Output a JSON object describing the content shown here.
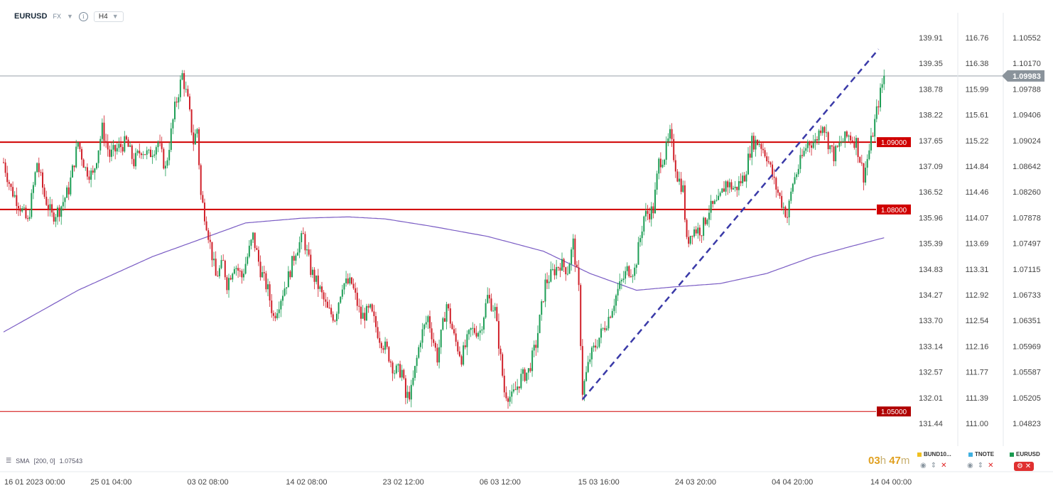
{
  "header": {
    "symbol": "EURUSD",
    "market": "FX",
    "timeframe": "H4"
  },
  "indicator": {
    "label": "SMA",
    "params": "[200, 0]",
    "value": "1.07543"
  },
  "timer": {
    "hours": "03",
    "h": "h",
    "minutes": "47",
    "m": "m"
  },
  "legend": [
    {
      "name": "BUND10...",
      "color": "#f0c020"
    },
    {
      "name": "TNOTE",
      "color": "#40b0e0"
    },
    {
      "name": "EURUSD",
      "color": "#1a9a50"
    }
  ],
  "colors": {
    "bull": "#1e9e56",
    "bear": "#d0202a",
    "sma": "#7a5cc4",
    "levels": "#d00000",
    "trend": "#3a3aa8",
    "price_tag": "#8a939b"
  },
  "chart_data": {
    "type": "candlestick",
    "symbol": "EURUSD",
    "timeframe": "H4",
    "ylim": [
      1.04823,
      1.10552
    ],
    "y_ticks_eurusd": [
      "1.10552",
      "1.10170",
      "1.09788",
      "1.09406",
      "1.09024",
      "1.08642",
      "1.08260",
      "1.07878",
      "1.07497",
      "1.07115",
      "1.06733",
      "1.06351",
      "1.05969",
      "1.05587",
      "1.05205",
      "1.04823"
    ],
    "y_ticks_scale1": [
      "139.91",
      "139.35",
      "138.78",
      "138.22",
      "137.65",
      "137.09",
      "136.52",
      "135.96",
      "135.39",
      "134.83",
      "134.27",
      "133.70",
      "133.14",
      "132.57",
      "132.01",
      "131.44"
    ],
    "y_ticks_scale2": [
      "116.76",
      "116.38",
      "115.99",
      "115.61",
      "115.22",
      "114.84",
      "114.46",
      "114.07",
      "113.69",
      "113.31",
      "112.92",
      "112.54",
      "112.16",
      "111.77",
      "111.39",
      "111.00"
    ],
    "x_ticks": [
      "16 01 2023 00:00",
      "25 01 04:00",
      "03 02 08:00",
      "14 02 08:00",
      "23 02 12:00",
      "06 03 12:00",
      "15 03 16:00",
      "24 03 20:00",
      "04 04 20:00",
      "14 04 00:00"
    ],
    "x_tick_candles": [
      0,
      52,
      104,
      157,
      209,
      261,
      314,
      366,
      418,
      471
    ],
    "current_price": "1.09983",
    "levels": [
      {
        "label": "1.09000",
        "value": 1.09
      },
      {
        "label": "1.08000",
        "value": 1.08
      },
      {
        "label": "1.05000",
        "value": 1.05
      }
    ],
    "trendline": {
      "from": {
        "candle": 311,
        "value": 1.0518
      },
      "to": {
        "candle": 470,
        "value": 1.1038
      }
    },
    "close_anchors": [
      [
        0,
        1.087
      ],
      [
        4,
        1.083
      ],
      [
        8,
        1.081
      ],
      [
        13,
        1.078
      ],
      [
        18,
        1.087
      ],
      [
        22,
        1.082
      ],
      [
        26,
        1.079
      ],
      [
        30,
        1.08
      ],
      [
        35,
        1.083
      ],
      [
        40,
        1.09
      ],
      [
        44,
        1.086
      ],
      [
        48,
        1.085
      ],
      [
        53,
        1.092
      ],
      [
        57,
        1.088
      ],
      [
        61,
        1.089
      ],
      [
        66,
        1.09
      ],
      [
        70,
        1.087
      ],
      [
        74,
        1.089
      ],
      [
        78,
        1.088
      ],
      [
        83,
        1.09
      ],
      [
        87,
        1.086
      ],
      [
        92,
        1.095
      ],
      [
        96,
        1.1
      ],
      [
        99,
        1.096
      ],
      [
        102,
        1.09
      ],
      [
        104,
        1.092
      ],
      [
        106,
        1.082
      ],
      [
        109,
        1.078
      ],
      [
        114,
        1.07
      ],
      [
        118,
        1.072
      ],
      [
        120,
        1.069
      ],
      [
        124,
        1.072
      ],
      [
        128,
        1.07
      ],
      [
        131,
        1.073
      ],
      [
        134,
        1.076
      ],
      [
        138,
        1.071
      ],
      [
        142,
        1.068
      ],
      [
        145,
        1.064
      ],
      [
        149,
        1.067
      ],
      [
        153,
        1.07
      ],
      [
        157,
        1.074
      ],
      [
        161,
        1.076
      ],
      [
        165,
        1.071
      ],
      [
        170,
        1.068
      ],
      [
        174,
        1.065
      ],
      [
        178,
        1.064
      ],
      [
        182,
        1.069
      ],
      [
        187,
        1.069
      ],
      [
        192,
        1.064
      ],
      [
        197,
        1.065
      ],
      [
        202,
        1.061
      ],
      [
        206,
        1.059
      ],
      [
        210,
        1.056
      ],
      [
        214,
        1.056
      ],
      [
        216,
        1.052
      ],
      [
        219,
        1.053
      ],
      [
        224,
        1.061
      ],
      [
        228,
        1.064
      ],
      [
        233,
        1.058
      ],
      [
        238,
        1.066
      ],
      [
        242,
        1.061
      ],
      [
        246,
        1.058
      ],
      [
        251,
        1.062
      ],
      [
        256,
        1.062
      ],
      [
        260,
        1.067
      ],
      [
        264,
        1.065
      ],
      [
        269,
        1.053
      ],
      [
        273,
        1.052
      ],
      [
        278,
        1.055
      ],
      [
        282,
        1.056
      ],
      [
        286,
        1.06
      ],
      [
        291,
        1.069
      ],
      [
        296,
        1.071
      ],
      [
        299,
        1.072
      ],
      [
        303,
        1.071
      ],
      [
        306,
        1.075
      ],
      [
        309,
        1.068
      ],
      [
        311,
        1.053
      ],
      [
        315,
        1.058
      ],
      [
        320,
        1.061
      ],
      [
        325,
        1.064
      ],
      [
        330,
        1.068
      ],
      [
        335,
        1.071
      ],
      [
        339,
        1.071
      ],
      [
        344,
        1.079
      ],
      [
        349,
        1.08
      ],
      [
        352,
        1.087
      ],
      [
        355,
        1.088
      ],
      [
        358,
        1.091
      ],
      [
        362,
        1.085
      ],
      [
        365,
        1.083
      ],
      [
        367,
        1.075
      ],
      [
        370,
        1.077
      ],
      [
        375,
        1.077
      ],
      [
        379,
        1.08
      ],
      [
        384,
        1.081
      ],
      [
        388,
        1.084
      ],
      [
        393,
        1.083
      ],
      [
        398,
        1.085
      ],
      [
        402,
        1.09
      ],
      [
        406,
        1.09
      ],
      [
        410,
        1.088
      ],
      [
        414,
        1.084
      ],
      [
        418,
        1.081
      ],
      [
        421,
        1.079
      ],
      [
        424,
        1.084
      ],
      [
        428,
        1.087
      ],
      [
        432,
        1.09
      ],
      [
        436,
        1.09
      ],
      [
        440,
        1.093
      ],
      [
        443,
        1.09
      ],
      [
        446,
        1.088
      ],
      [
        450,
        1.09
      ],
      [
        454,
        1.091
      ],
      [
        458,
        1.09
      ],
      [
        462,
        1.085
      ],
      [
        466,
        1.09
      ],
      [
        470,
        1.096
      ],
      [
        473,
        1.0998
      ]
    ],
    "sma_anchors": [
      [
        0,
        1.0618
      ],
      [
        40,
        1.068
      ],
      [
        80,
        1.073
      ],
      [
        105,
        1.0755
      ],
      [
        130,
        1.078
      ],
      [
        160,
        1.0787
      ],
      [
        185,
        1.0789
      ],
      [
        205,
        1.0786
      ],
      [
        230,
        1.0775
      ],
      [
        260,
        1.076
      ],
      [
        290,
        1.0738
      ],
      [
        315,
        1.0705
      ],
      [
        340,
        1.068
      ],
      [
        360,
        1.0685
      ],
      [
        385,
        1.069
      ],
      [
        410,
        1.0705
      ],
      [
        435,
        1.073
      ],
      [
        455,
        1.0745
      ],
      [
        473,
        1.0758
      ]
    ]
  }
}
